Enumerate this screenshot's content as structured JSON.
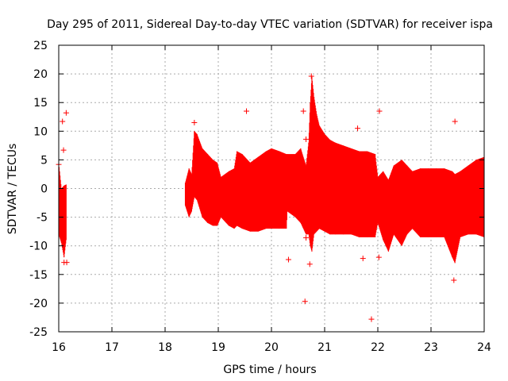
{
  "chart_data": {
    "type": "scatter",
    "title": "Day 295 of 2011, Sidereal Day-to-day VTEC variation (SDTVAR) for receiver ispa",
    "xlabel": "GPS time / hours",
    "ylabel": "SDTVAR / TECUs",
    "xlim": [
      16,
      24
    ],
    "ylim": [
      -25,
      25
    ],
    "xticks": [
      "16",
      "17",
      "18",
      "19",
      "20",
      "21",
      "22",
      "23",
      "24"
    ],
    "yticks": [
      "25",
      "20",
      "15",
      "10",
      "5",
      "0",
      "-5",
      "-10",
      "-15",
      "-20",
      "-25"
    ],
    "grid": true,
    "series_color": "#ff0000",
    "series": [
      {
        "name": "SDTVAR",
        "style": "vertical spread (min/max per epoch) with + markers",
        "envelope": [
          {
            "x": 16.0,
            "min": -8,
            "max": 4.5
          },
          {
            "x": 16.05,
            "min": -9.5,
            "max": 0
          },
          {
            "x": 16.1,
            "min": -12,
            "max": 0.5
          },
          {
            "x": 16.14,
            "min": -9,
            "max": 0.7
          },
          {
            "x": 18.38,
            "min": -3,
            "max": 1
          },
          {
            "x": 18.45,
            "min": -5,
            "max": 3.5
          },
          {
            "x": 18.5,
            "min": -4,
            "max": 2.5
          },
          {
            "x": 18.55,
            "min": -1.5,
            "max": 10
          },
          {
            "x": 18.6,
            "min": -2,
            "max": 9.5
          },
          {
            "x": 18.7,
            "min": -5,
            "max": 7
          },
          {
            "x": 18.8,
            "min": -6,
            "max": 6
          },
          {
            "x": 18.9,
            "min": -6.5,
            "max": 5
          },
          {
            "x": 18.98,
            "min": -6.5,
            "max": 4.5
          },
          {
            "x": 19.05,
            "min": -5,
            "max": 2
          },
          {
            "x": 19.2,
            "min": -6.5,
            "max": 3
          },
          {
            "x": 19.3,
            "min": -7,
            "max": 3.5
          },
          {
            "x": 19.35,
            "min": -6.5,
            "max": 6.5
          },
          {
            "x": 19.45,
            "min": -7,
            "max": 6
          },
          {
            "x": 19.6,
            "min": -7.5,
            "max": 4.5
          },
          {
            "x": 19.75,
            "min": -7.5,
            "max": 5.5
          },
          {
            "x": 19.9,
            "min": -7,
            "max": 6.5
          },
          {
            "x": 20.0,
            "min": -7,
            "max": 7
          },
          {
            "x": 20.15,
            "min": -7,
            "max": 6.5
          },
          {
            "x": 20.28,
            "min": -7,
            "max": 6
          },
          {
            "x": 20.3,
            "min": -4,
            "max": 6
          },
          {
            "x": 20.45,
            "min": -5,
            "max": 6
          },
          {
            "x": 20.55,
            "min": -6,
            "max": 7
          },
          {
            "x": 20.65,
            "min": -8,
            "max": 4
          },
          {
            "x": 20.7,
            "min": -8,
            "max": 8
          },
          {
            "x": 20.73,
            "min": -10,
            "max": 15
          },
          {
            "x": 20.76,
            "min": -11,
            "max": 19.5
          },
          {
            "x": 20.8,
            "min": -8,
            "max": 16
          },
          {
            "x": 20.85,
            "min": -7.5,
            "max": 13
          },
          {
            "x": 20.9,
            "min": -7,
            "max": 11
          },
          {
            "x": 21.0,
            "min": -7.5,
            "max": 9.5
          },
          {
            "x": 21.1,
            "min": -8,
            "max": 8.5
          },
          {
            "x": 21.2,
            "min": -8,
            "max": 8
          },
          {
            "x": 21.35,
            "min": -8,
            "max": 7.5
          },
          {
            "x": 21.5,
            "min": -8,
            "max": 7
          },
          {
            "x": 21.65,
            "min": -8.5,
            "max": 6.5
          },
          {
            "x": 21.8,
            "min": -8.5,
            "max": 6.5
          },
          {
            "x": 21.95,
            "min": -8.5,
            "max": 6
          },
          {
            "x": 22.0,
            "min": -6,
            "max": 2
          },
          {
            "x": 22.1,
            "min": -9,
            "max": 3
          },
          {
            "x": 22.2,
            "min": -11,
            "max": 1.5
          },
          {
            "x": 22.3,
            "min": -8,
            "max": 4
          },
          {
            "x": 22.45,
            "min": -10,
            "max": 5
          },
          {
            "x": 22.55,
            "min": -8,
            "max": 4
          },
          {
            "x": 22.65,
            "min": -7,
            "max": 3
          },
          {
            "x": 22.8,
            "min": -8.5,
            "max": 3.5
          },
          {
            "x": 22.95,
            "min": -8.5,
            "max": 3.5
          },
          {
            "x": 23.1,
            "min": -8.5,
            "max": 3.5
          },
          {
            "x": 23.25,
            "min": -8.5,
            "max": 3.5
          },
          {
            "x": 23.4,
            "min": -12,
            "max": 3
          },
          {
            "x": 23.45,
            "min": -13,
            "max": 2.5
          },
          {
            "x": 23.55,
            "min": -8.5,
            "max": 3
          },
          {
            "x": 23.7,
            "min": -8,
            "max": 4
          },
          {
            "x": 23.85,
            "min": -8,
            "max": 5
          },
          {
            "x": 24.0,
            "min": -8.5,
            "max": 5.5
          }
        ],
        "outliers": [
          {
            "x": 16.0,
            "y": 4.2
          },
          {
            "x": 16.07,
            "y": 11.7
          },
          {
            "x": 16.09,
            "y": 6.7
          },
          {
            "x": 16.14,
            "y": 13.2
          },
          {
            "x": 16.1,
            "y": -12.9
          },
          {
            "x": 16.15,
            "y": -12.9
          },
          {
            "x": 18.55,
            "y": 11.5
          },
          {
            "x": 19.53,
            "y": 13.5
          },
          {
            "x": 20.32,
            "y": -12.4
          },
          {
            "x": 20.6,
            "y": 13.5
          },
          {
            "x": 20.65,
            "y": 8.6
          },
          {
            "x": 20.65,
            "y": -8.6
          },
          {
            "x": 20.63,
            "y": -19.7
          },
          {
            "x": 20.72,
            "y": -13.2
          },
          {
            "x": 20.75,
            "y": 19.6
          },
          {
            "x": 21.62,
            "y": 10.5
          },
          {
            "x": 21.72,
            "y": -12.2
          },
          {
            "x": 21.88,
            "y": -22.8
          },
          {
            "x": 22.03,
            "y": 13.5
          },
          {
            "x": 22.02,
            "y": -12
          },
          {
            "x": 23.45,
            "y": 11.7
          },
          {
            "x": 23.43,
            "y": -16
          }
        ]
      }
    ]
  }
}
